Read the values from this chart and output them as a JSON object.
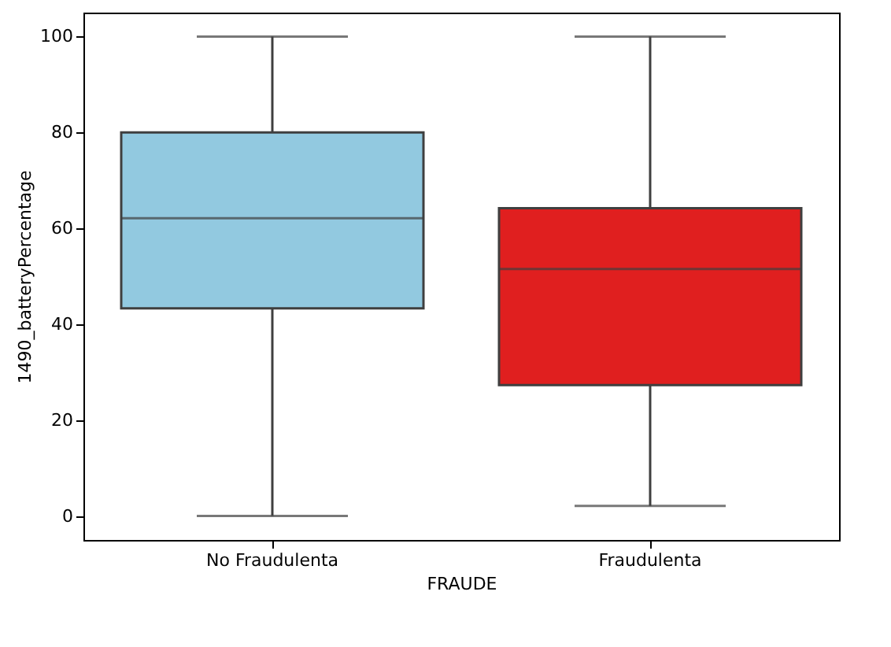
{
  "chart_data": {
    "type": "box",
    "xlabel": "FRAUDE",
    "ylabel": "1490_batteryPercentage",
    "categories": [
      "No Fraudulenta",
      "Fraudulenta"
    ],
    "colors": [
      "#92c9e0",
      "#e01f1f"
    ],
    "boxes": [
      {
        "low": 0,
        "q1": 43.3,
        "median": 62.1,
        "q3": 80,
        "high": 100
      },
      {
        "low": 2.1,
        "q1": 27.3,
        "median": 51.5,
        "q3": 64.2,
        "high": 100
      }
    ],
    "ylim": [
      -5,
      105
    ],
    "yticks": [
      0,
      20,
      40,
      60,
      80,
      100
    ]
  }
}
